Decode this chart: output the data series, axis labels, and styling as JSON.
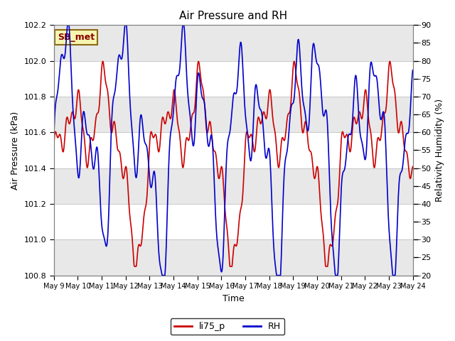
{
  "title": "Air Pressure and RH",
  "xlabel": "Time",
  "ylabel_left": "Air Pressure (kPa)",
  "ylabel_right": "Relativity Humidity (%)",
  "xlim": [
    0,
    15
  ],
  "ylim_left": [
    100.8,
    102.2
  ],
  "ylim_right": [
    20,
    90
  ],
  "yticks_left": [
    100.8,
    101.0,
    101.2,
    101.4,
    101.6,
    101.8,
    102.0,
    102.2
  ],
  "yticks_right": [
    20,
    25,
    30,
    35,
    40,
    45,
    50,
    55,
    60,
    65,
    70,
    75,
    80,
    85,
    90
  ],
  "xtick_labels": [
    "May 9",
    "May 10",
    "May 11",
    "May 12",
    "May 13",
    "May 14",
    "May 15",
    "May 16",
    "May 17",
    "May 18",
    "May 19",
    "May 20",
    "May 21",
    "May 22",
    "May 23",
    "May 24"
  ],
  "color_pressure": "#cc0000",
  "color_rh": "#0000cc",
  "legend_label_pressure": "li75_p",
  "legend_label_rh": "RH",
  "annotation_text": "SB_met",
  "bg_color": "#ffffff",
  "plot_bg_color": "#ffffff",
  "band1_lo": 101.6,
  "band1_hi": 102.0,
  "band2_lo": 101.2,
  "band2_hi": 101.6,
  "band_color": "#e0e0e0",
  "grid_color": "#c8c8c8",
  "line_width": 1.2
}
